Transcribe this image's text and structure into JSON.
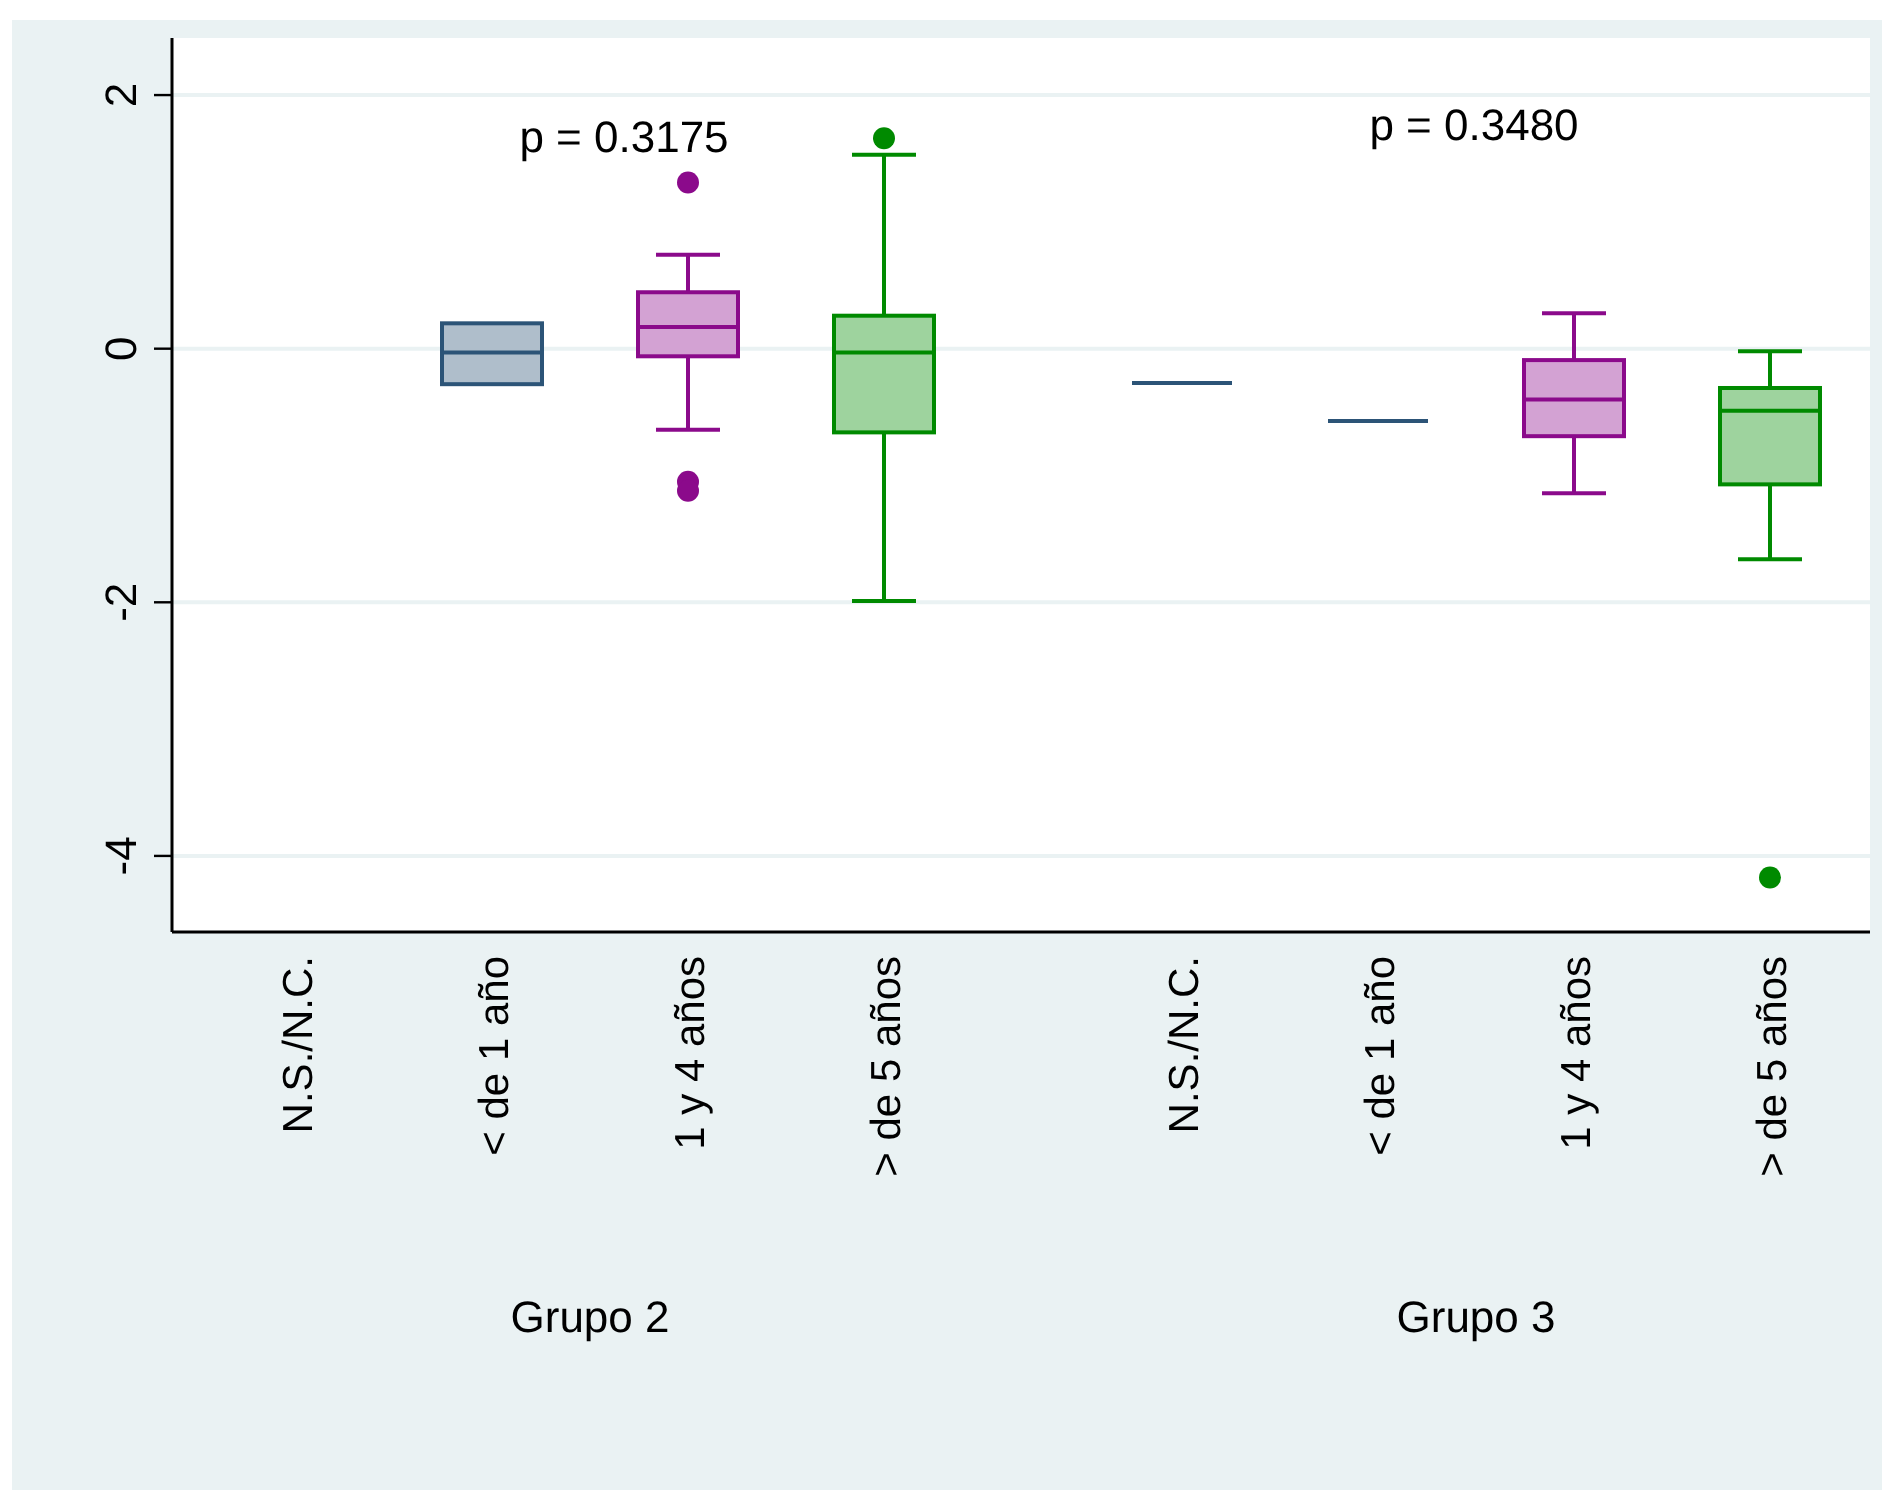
{
  "chart_data": {
    "type": "box",
    "categories": [
      "N.S./N.C.",
      "< de 1 año",
      "1 y 4 años",
      "> de 5 años",
      "N.S./N.C.",
      "< de 1 año",
      "1 y 4 años",
      "> de 5 años"
    ],
    "boxes": [
      null,
      {
        "low": -0.28,
        "q1": -0.28,
        "median": -0.03,
        "q3": 0.2,
        "high": 0.2
      },
      {
        "low": -0.64,
        "q1": -0.06,
        "median": 0.17,
        "q3": 0.445,
        "high": 0.74,
        "outliers": [
          1.31,
          -1.05,
          -1.12
        ]
      },
      {
        "low": -1.99,
        "q1": -0.66,
        "median": -0.03,
        "q3": 0.26,
        "high": 1.53,
        "outliers": [
          1.66
        ]
      },
      {
        "low": -0.27,
        "q1": -0.27,
        "median": -0.27,
        "q3": -0.27,
        "high": -0.27
      },
      {
        "low": -0.57,
        "q1": -0.57,
        "median": -0.57,
        "q3": -0.57,
        "high": -0.57
      },
      {
        "low": -1.14,
        "q1": -0.69,
        "median": -0.4,
        "q3": -0.09,
        "high": 0.28
      },
      {
        "low": -1.66,
        "q1": -1.07,
        "median": -0.49,
        "q3": -0.31,
        "high": -0.02,
        "outliers": [
          -4.17
        ]
      }
    ],
    "colors": [
      null,
      "#2c5477",
      "#8b0a8b",
      "#008a00",
      "#2c5477",
      "#2c5477",
      "#8b0a8b",
      "#008a00"
    ],
    "ylim": [
      -4.6,
      2.45
    ],
    "yticks": [
      -4,
      -2,
      0,
      2
    ],
    "grid": "y",
    "annotations": [
      "p = 0.3175",
      "p = 0.3480",
      "Grupo 2",
      "Grupo 3"
    ]
  }
}
